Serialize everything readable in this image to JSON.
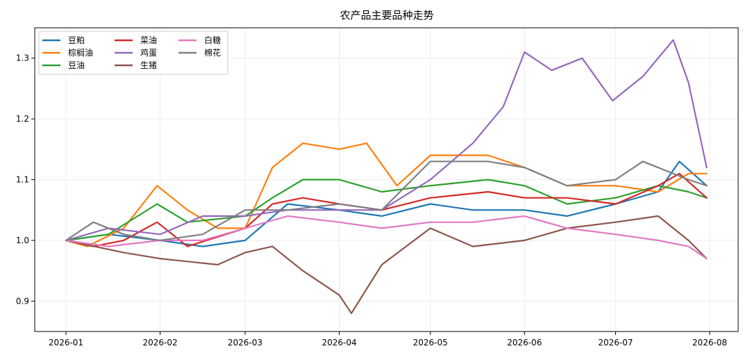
{
  "chart_data": {
    "type": "line",
    "title": "农产品主要品种走势",
    "xlabel": "",
    "ylabel": "",
    "ylim": [
      0.85,
      1.35
    ],
    "x_ticks": [
      "2026-01",
      "2026-02",
      "2026-03",
      "2026-04",
      "2026-05",
      "2026-06",
      "2026-07",
      "2026-08"
    ],
    "y_ticks": [
      "0.9",
      "1.0",
      "1.1",
      "1.2",
      "1.3"
    ],
    "grid": true,
    "legend_position": "top-left",
    "legend_columns": 3,
    "series": [
      {
        "name": "豆粕",
        "color": "#1f77b4",
        "points": [
          [
            "2026-01-01",
            1.0
          ],
          [
            "2026-01-15",
            1.01
          ],
          [
            "2026-02-01",
            1.0
          ],
          [
            "2026-02-15",
            0.99
          ],
          [
            "2026-03-01",
            1.0
          ],
          [
            "2026-03-15",
            1.06
          ],
          [
            "2026-04-01",
            1.05
          ],
          [
            "2026-04-15",
            1.04
          ],
          [
            "2026-05-01",
            1.06
          ],
          [
            "2026-05-15",
            1.05
          ],
          [
            "2026-06-01",
            1.05
          ],
          [
            "2026-06-15",
            1.04
          ],
          [
            "2026-07-01",
            1.06
          ],
          [
            "2026-07-15",
            1.08
          ],
          [
            "2026-07-22",
            1.13
          ],
          [
            "2026-07-31",
            1.09
          ]
        ]
      },
      {
        "name": "棕榈油",
        "color": "#ff7f0e",
        "points": [
          [
            "2026-01-01",
            1.0
          ],
          [
            "2026-01-08",
            0.99
          ],
          [
            "2026-01-20",
            1.02
          ],
          [
            "2026-01-31",
            1.09
          ],
          [
            "2026-02-10",
            1.05
          ],
          [
            "2026-02-20",
            1.02
          ],
          [
            "2026-03-01",
            1.02
          ],
          [
            "2026-03-10",
            1.12
          ],
          [
            "2026-03-20",
            1.16
          ],
          [
            "2026-04-01",
            1.15
          ],
          [
            "2026-04-10",
            1.16
          ],
          [
            "2026-04-20",
            1.09
          ],
          [
            "2026-05-01",
            1.14
          ],
          [
            "2026-05-20",
            1.14
          ],
          [
            "2026-06-01",
            1.12
          ],
          [
            "2026-06-15",
            1.09
          ],
          [
            "2026-07-01",
            1.09
          ],
          [
            "2026-07-15",
            1.08
          ],
          [
            "2026-07-25",
            1.11
          ],
          [
            "2026-07-31",
            1.11
          ]
        ]
      },
      {
        "name": "豆油",
        "color": "#2ca02c",
        "points": [
          [
            "2026-01-01",
            1.0
          ],
          [
            "2026-01-15",
            1.01
          ],
          [
            "2026-01-31",
            1.06
          ],
          [
            "2026-02-10",
            1.03
          ],
          [
            "2026-03-01",
            1.04
          ],
          [
            "2026-03-10",
            1.07
          ],
          [
            "2026-03-20",
            1.1
          ],
          [
            "2026-04-01",
            1.1
          ],
          [
            "2026-04-15",
            1.08
          ],
          [
            "2026-05-01",
            1.09
          ],
          [
            "2026-05-20",
            1.1
          ],
          [
            "2026-06-01",
            1.09
          ],
          [
            "2026-06-15",
            1.06
          ],
          [
            "2026-07-01",
            1.07
          ],
          [
            "2026-07-15",
            1.09
          ],
          [
            "2026-07-25",
            1.08
          ],
          [
            "2026-07-31",
            1.07
          ]
        ]
      },
      {
        "name": "菜油",
        "color": "#d62728",
        "points": [
          [
            "2026-01-01",
            1.0
          ],
          [
            "2026-01-10",
            0.99
          ],
          [
            "2026-01-20",
            1.0
          ],
          [
            "2026-01-31",
            1.03
          ],
          [
            "2026-02-10",
            0.99
          ],
          [
            "2026-03-01",
            1.02
          ],
          [
            "2026-03-10",
            1.06
          ],
          [
            "2026-03-20",
            1.07
          ],
          [
            "2026-04-01",
            1.06
          ],
          [
            "2026-04-15",
            1.05
          ],
          [
            "2026-05-01",
            1.07
          ],
          [
            "2026-05-20",
            1.08
          ],
          [
            "2026-06-01",
            1.07
          ],
          [
            "2026-06-15",
            1.07
          ],
          [
            "2026-07-01",
            1.06
          ],
          [
            "2026-07-15",
            1.09
          ],
          [
            "2026-07-22",
            1.11
          ],
          [
            "2026-07-31",
            1.07
          ]
        ]
      },
      {
        "name": "鸡蛋",
        "color": "#9467bd",
        "points": [
          [
            "2026-01-01",
            1.0
          ],
          [
            "2026-01-15",
            1.02
          ],
          [
            "2026-02-01",
            1.01
          ],
          [
            "2026-02-15",
            1.04
          ],
          [
            "2026-03-01",
            1.04
          ],
          [
            "2026-03-15",
            1.05
          ],
          [
            "2026-04-01",
            1.05
          ],
          [
            "2026-04-15",
            1.05
          ],
          [
            "2026-05-01",
            1.1
          ],
          [
            "2026-05-15",
            1.16
          ],
          [
            "2026-05-25",
            1.22
          ],
          [
            "2026-06-01",
            1.31
          ],
          [
            "2026-06-10",
            1.28
          ],
          [
            "2026-06-20",
            1.3
          ],
          [
            "2026-06-30",
            1.23
          ],
          [
            "2026-07-10",
            1.27
          ],
          [
            "2026-07-20",
            1.33
          ],
          [
            "2026-07-25",
            1.26
          ],
          [
            "2026-07-31",
            1.12
          ]
        ]
      },
      {
        "name": "生猪",
        "color": "#8c564b",
        "points": [
          [
            "2026-01-01",
            1.0
          ],
          [
            "2026-01-20",
            0.98
          ],
          [
            "2026-02-01",
            0.97
          ],
          [
            "2026-02-20",
            0.96
          ],
          [
            "2026-03-01",
            0.98
          ],
          [
            "2026-03-10",
            0.99
          ],
          [
            "2026-03-20",
            0.95
          ],
          [
            "2026-04-01",
            0.91
          ],
          [
            "2026-04-05",
            0.88
          ],
          [
            "2026-04-15",
            0.96
          ],
          [
            "2026-05-01",
            1.02
          ],
          [
            "2026-05-15",
            0.99
          ],
          [
            "2026-06-01",
            1.0
          ],
          [
            "2026-06-15",
            1.02
          ],
          [
            "2026-07-01",
            1.03
          ],
          [
            "2026-07-15",
            1.04
          ],
          [
            "2026-07-25",
            1.0
          ],
          [
            "2026-07-31",
            0.97
          ]
        ]
      },
      {
        "name": "白糖",
        "color": "#e377c2",
        "points": [
          [
            "2026-01-01",
            1.0
          ],
          [
            "2026-01-15",
            0.99
          ],
          [
            "2026-02-01",
            1.0
          ],
          [
            "2026-02-15",
            1.0
          ],
          [
            "2026-03-01",
            1.02
          ],
          [
            "2026-03-15",
            1.04
          ],
          [
            "2026-04-01",
            1.03
          ],
          [
            "2026-04-15",
            1.02
          ],
          [
            "2026-05-01",
            1.03
          ],
          [
            "2026-05-15",
            1.03
          ],
          [
            "2026-06-01",
            1.04
          ],
          [
            "2026-06-15",
            1.02
          ],
          [
            "2026-07-01",
            1.01
          ],
          [
            "2026-07-15",
            1.0
          ],
          [
            "2026-07-25",
            0.99
          ],
          [
            "2026-07-31",
            0.97
          ]
        ]
      },
      {
        "name": "棉花",
        "color": "#7f7f7f",
        "points": [
          [
            "2026-01-01",
            1.0
          ],
          [
            "2026-01-10",
            1.03
          ],
          [
            "2026-01-20",
            1.01
          ],
          [
            "2026-02-01",
            1.0
          ],
          [
            "2026-02-15",
            1.01
          ],
          [
            "2026-03-01",
            1.05
          ],
          [
            "2026-03-15",
            1.05
          ],
          [
            "2026-04-01",
            1.06
          ],
          [
            "2026-04-15",
            1.05
          ],
          [
            "2026-05-01",
            1.13
          ],
          [
            "2026-05-20",
            1.13
          ],
          [
            "2026-06-01",
            1.12
          ],
          [
            "2026-06-15",
            1.09
          ],
          [
            "2026-07-01",
            1.1
          ],
          [
            "2026-07-10",
            1.13
          ],
          [
            "2026-07-25",
            1.1
          ],
          [
            "2026-07-31",
            1.09
          ]
        ]
      }
    ]
  }
}
